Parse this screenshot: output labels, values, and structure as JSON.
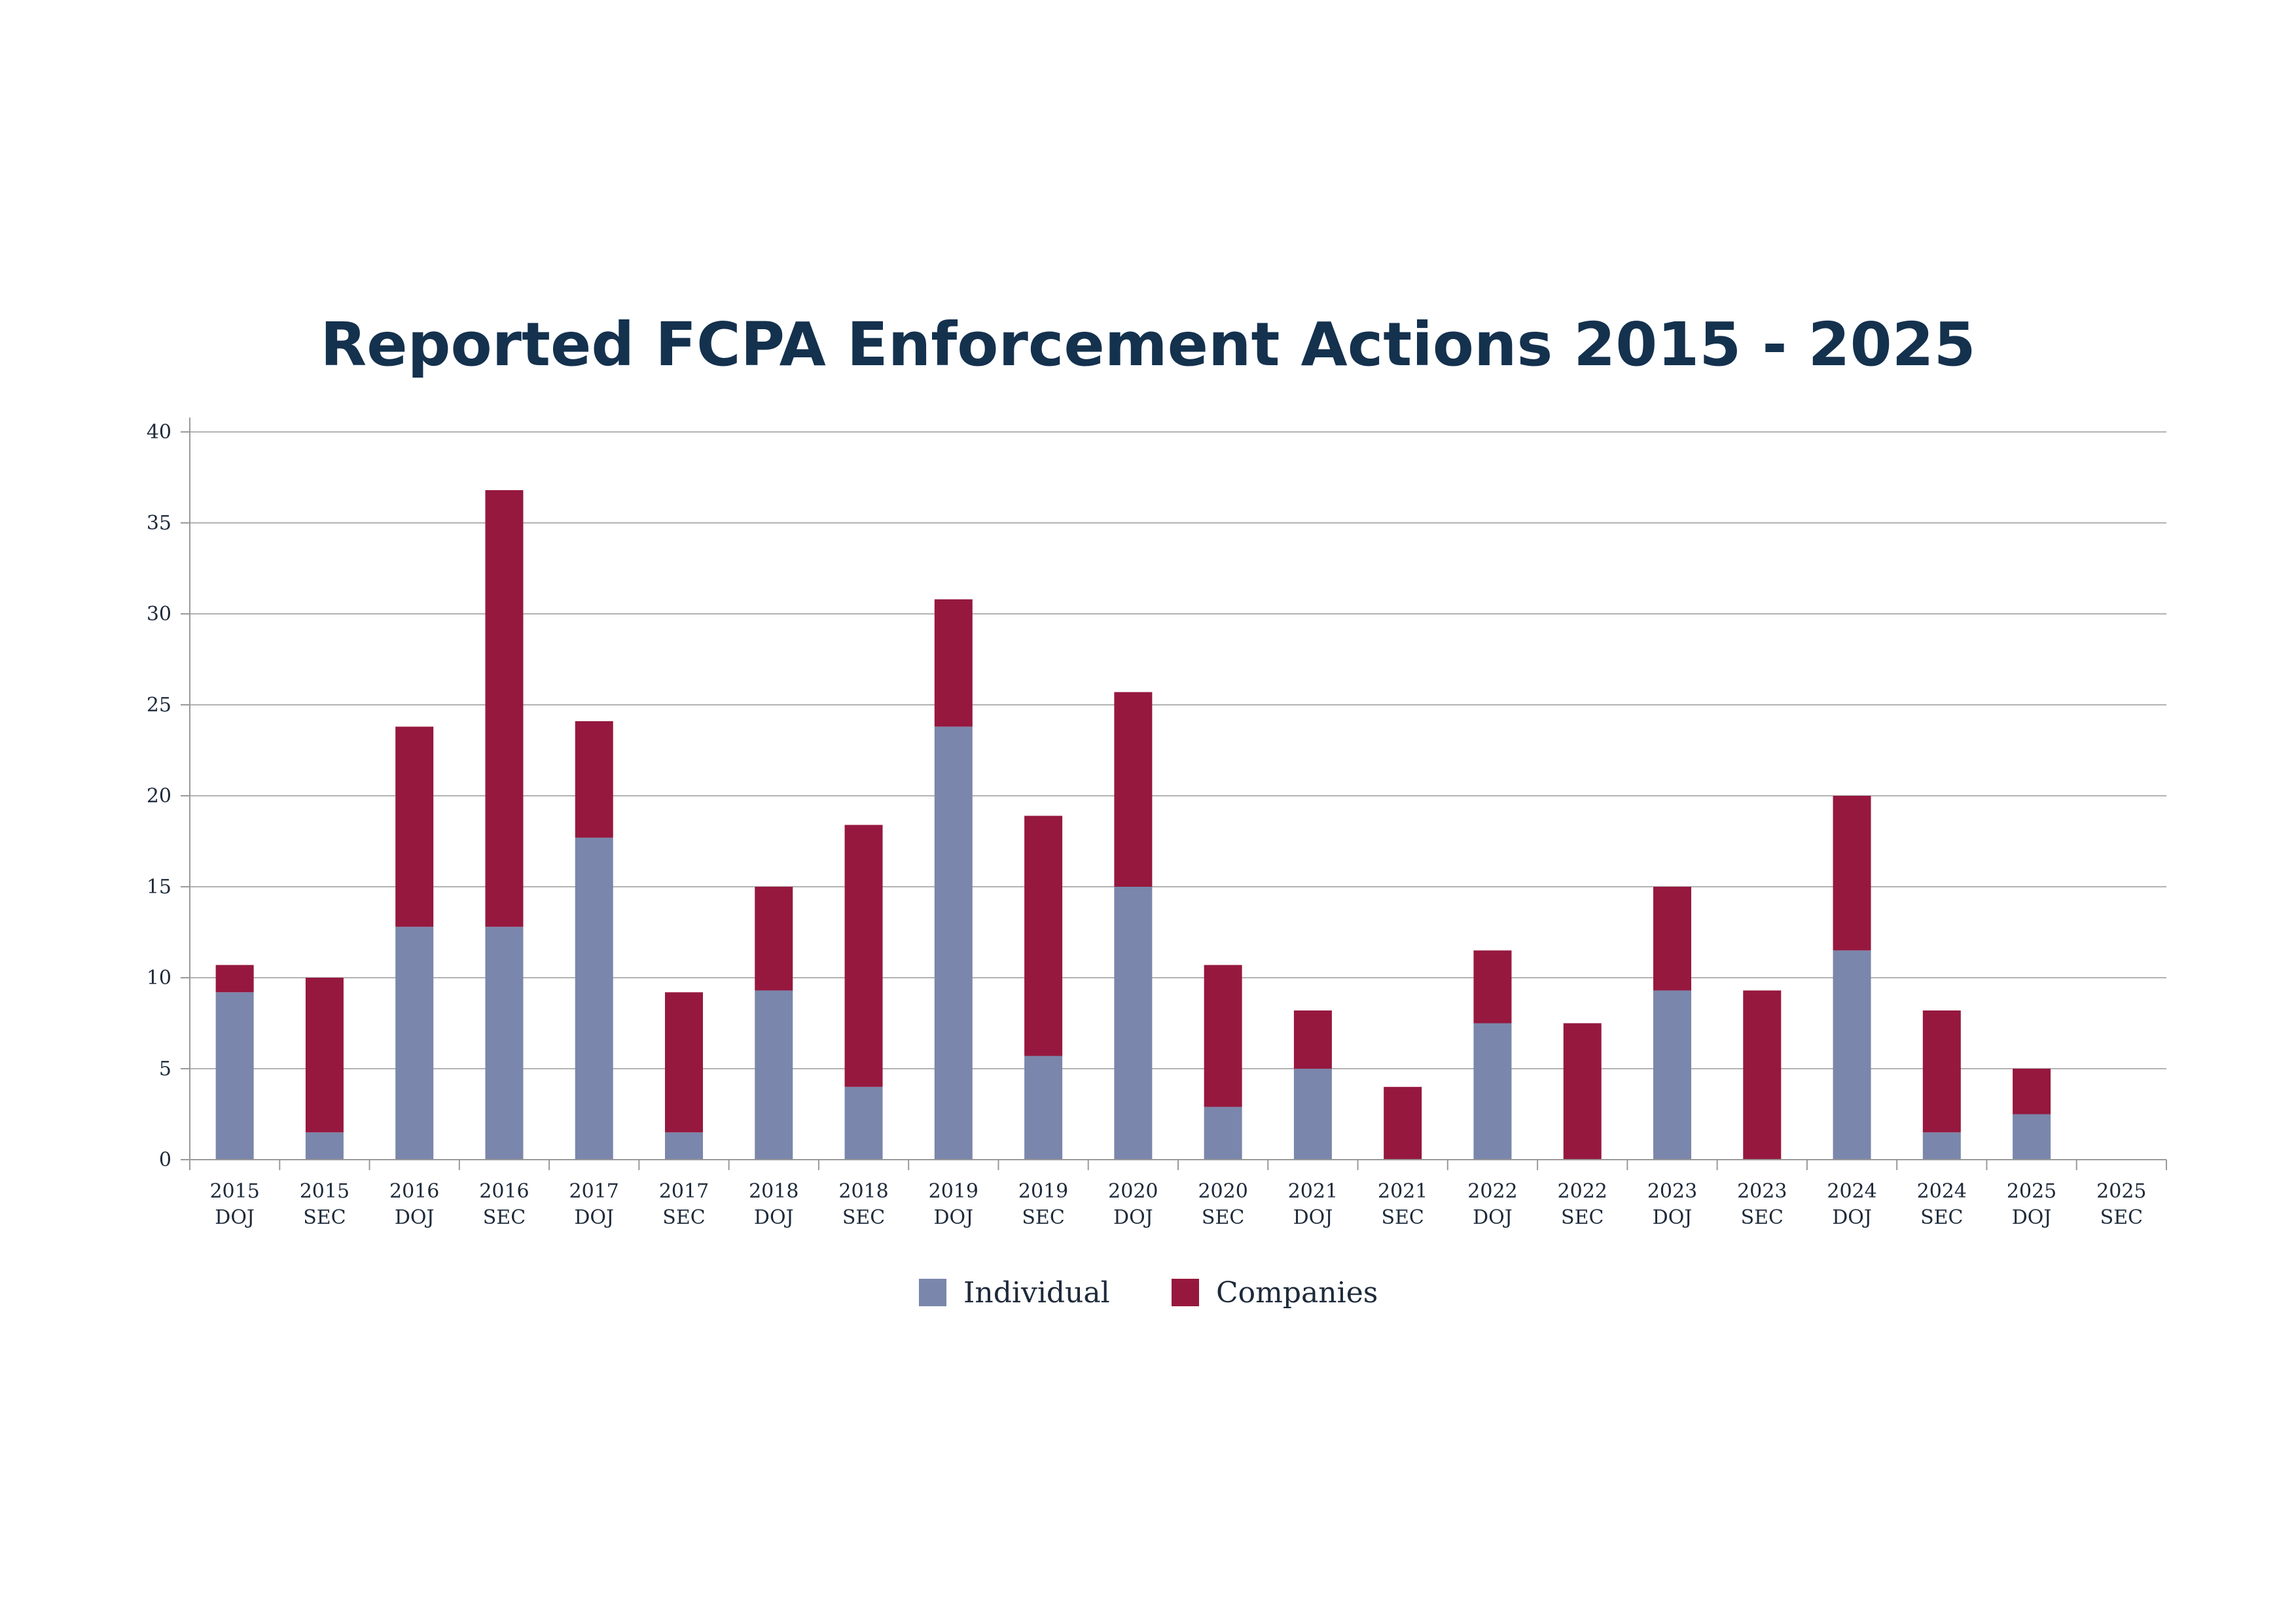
{
  "chart_data": {
    "type": "bar",
    "stacked": true,
    "title": "Reported FCPA Enforcement Actions 2015 - 2025",
    "xlabel": "",
    "ylabel": "",
    "ylim": [
      0,
      40
    ],
    "yticks": [
      0,
      5,
      10,
      15,
      20,
      25,
      30,
      35,
      40
    ],
    "grid": true,
    "legend": "bottom",
    "categories": [
      [
        "2015",
        "DOJ"
      ],
      [
        "2015",
        "SEC"
      ],
      [
        "2016",
        "DOJ"
      ],
      [
        "2016",
        "SEC"
      ],
      [
        "2017",
        "DOJ"
      ],
      [
        "2017",
        "SEC"
      ],
      [
        "2018",
        "DOJ"
      ],
      [
        "2018",
        "SEC"
      ],
      [
        "2019",
        "DOJ"
      ],
      [
        "2019",
        "SEC"
      ],
      [
        "2020",
        "DOJ"
      ],
      [
        "2020",
        "SEC"
      ],
      [
        "2021",
        "DOJ"
      ],
      [
        "2021",
        "SEC"
      ],
      [
        "2022",
        "DOJ"
      ],
      [
        "2022",
        "SEC"
      ],
      [
        "2023",
        "DOJ"
      ],
      [
        "2023",
        "SEC"
      ],
      [
        "2024",
        "DOJ"
      ],
      [
        "2024",
        "SEC"
      ],
      [
        "2025",
        "DOJ"
      ],
      [
        "2025",
        "SEC"
      ]
    ],
    "series": [
      {
        "name": "Individual",
        "color": "#7a86ab",
        "values": [
          9.2,
          1.5,
          12.8,
          12.8,
          17.7,
          1.5,
          9.3,
          4,
          23.8,
          5.7,
          15,
          2.9,
          5,
          0,
          7.5,
          0,
          9.3,
          0,
          11.5,
          1.5,
          2.5,
          0
        ]
      },
      {
        "name": "Companies",
        "color": "#96183e",
        "values": [
          1.5,
          8.5,
          11,
          24,
          6.4,
          7.7,
          5.7,
          14.4,
          7,
          13.2,
          10.7,
          7.8,
          3.2,
          4,
          4,
          7.5,
          5.7,
          9.3,
          8.5,
          6.7,
          2.5,
          0
        ]
      }
    ]
  }
}
